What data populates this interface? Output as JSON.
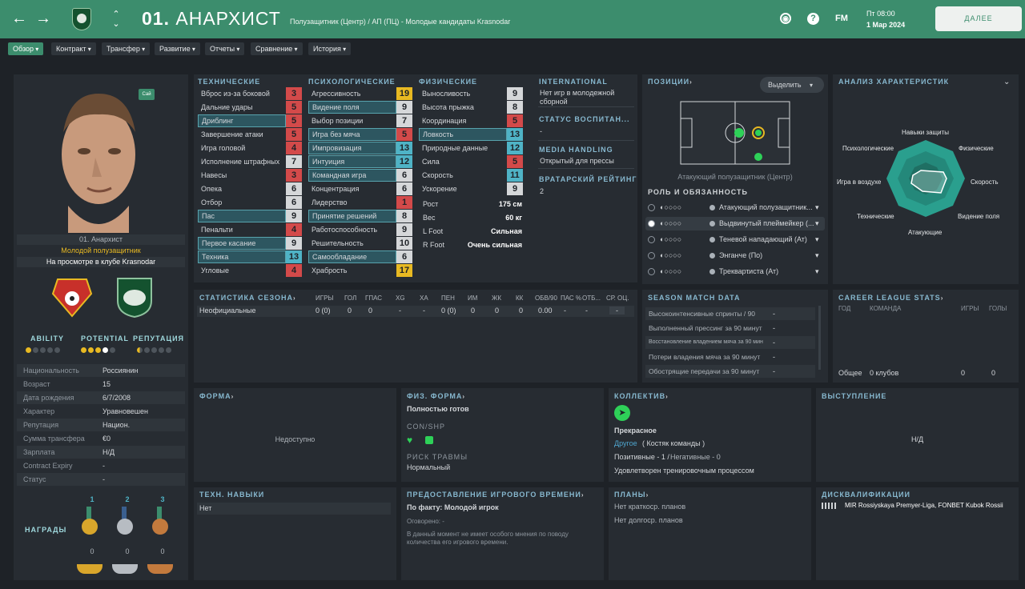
{
  "header": {
    "player_title": "01. Анархист",
    "title_number": "01.",
    "title_name": "АНАРХИСТ",
    "subtitle": "Полузащитник (Центр) / АП (ПЦ) - Молодые кандидаты Krasnodar",
    "fm_label": "FM",
    "day_time": "Пт 08:00",
    "date": "1 Мар 2024",
    "continue_label": "ДАЛЕЕ",
    "help_icon": "?"
  },
  "nav": [
    "Обзор",
    "Контракт",
    "Трансфер",
    "Развитие",
    "Отчеты",
    "Сравнение",
    "История"
  ],
  "profile": {
    "badge": "Сай",
    "name_line": "01. Анархист",
    "role_line": "Молодой полузащитник",
    "club_line": "На просмотре в клубе Krasnodar",
    "ability_label": "ABILITY",
    "potential_label": "POTENTIAL",
    "reputation_label": "РЕПУТАЦИЯ",
    "ability_stars": 1,
    "potential_stars": 4,
    "reputation_stars": 0.5,
    "details": [
      {
        "label": "Национальность",
        "value": "Россиянин"
      },
      {
        "label": "Возраст",
        "value": "15"
      },
      {
        "label": "Дата рождения",
        "value": "6/7/2008"
      },
      {
        "label": "Характер",
        "value": "Уравновешен"
      },
      {
        "label": "Репутация",
        "value": "Национ."
      },
      {
        "label": "Сумма трансфера",
        "value": "€0"
      },
      {
        "label": "Зарплата",
        "value": "Н/Д"
      },
      {
        "label": "Contract Expiry",
        "value": "-"
      },
      {
        "label": "Статус",
        "value": "-"
      }
    ],
    "awards_label": "НАГРАДЫ",
    "medals": [
      {
        "place": "1",
        "count": "0",
        "color": "#d9a62b"
      },
      {
        "place": "2",
        "count": "0",
        "color": "#b7bcc2"
      },
      {
        "place": "3",
        "count": "0",
        "color": "#c37a3d"
      }
    ]
  },
  "attributes": {
    "technical_header": "ТЕХНИЧЕСКИЕ",
    "mental_header": "ПСИХОЛОГИЧЕСКИЕ",
    "physical_header": "ФИЗИЧЕСКИЕ",
    "technical": [
      {
        "name": "Вброс из-за боковой",
        "value": "3",
        "color": "#d34a4a",
        "hl": false
      },
      {
        "name": "Дальние удары",
        "value": "5",
        "color": "#d34a4a",
        "hl": false
      },
      {
        "name": "Дриблинг",
        "value": "5",
        "color": "#d34a4a",
        "hl": true
      },
      {
        "name": "Завершение атаки",
        "value": "5",
        "color": "#d34a4a",
        "hl": false
      },
      {
        "name": "Игра головой",
        "value": "4",
        "color": "#d34a4a",
        "hl": false
      },
      {
        "name": "Исполнение штрафных",
        "value": "7",
        "color": "#d5d7d9",
        "hl": false
      },
      {
        "name": "Навесы",
        "value": "3",
        "color": "#d34a4a",
        "hl": false
      },
      {
        "name": "Опека",
        "value": "6",
        "color": "#d5d7d9",
        "hl": false
      },
      {
        "name": "Отбор",
        "value": "6",
        "color": "#d5d7d9",
        "hl": false
      },
      {
        "name": "Пас",
        "value": "9",
        "color": "#d5d7d9",
        "hl": true
      },
      {
        "name": "Пенальти",
        "value": "4",
        "color": "#d34a4a",
        "hl": false
      },
      {
        "name": "Первое касание",
        "value": "9",
        "color": "#d5d7d9",
        "hl": true
      },
      {
        "name": "Техника",
        "value": "13",
        "color": "#4fb3c6",
        "hl": true
      },
      {
        "name": "Угловые",
        "value": "4",
        "color": "#d34a4a",
        "hl": false
      }
    ],
    "mental": [
      {
        "name": "Агрессивность",
        "value": "19",
        "color": "#e8b922",
        "hl": false
      },
      {
        "name": "Видение поля",
        "value": "9",
        "color": "#d5d7d9",
        "hl": true
      },
      {
        "name": "Выбор позиции",
        "value": "7",
        "color": "#d5d7d9",
        "hl": false
      },
      {
        "name": "Игра без мяча",
        "value": "5",
        "color": "#d34a4a",
        "hl": true
      },
      {
        "name": "Импровизация",
        "value": "13",
        "color": "#4fb3c6",
        "hl": true
      },
      {
        "name": "Интуиция",
        "value": "12",
        "color": "#4fb3c6",
        "hl": true
      },
      {
        "name": "Командная игра",
        "value": "6",
        "color": "#d5d7d9",
        "hl": true
      },
      {
        "name": "Концентрация",
        "value": "6",
        "color": "#d5d7d9",
        "hl": false
      },
      {
        "name": "Лидерство",
        "value": "1",
        "color": "#d34a4a",
        "hl": false
      },
      {
        "name": "Принятие решений",
        "value": "8",
        "color": "#d5d7d9",
        "hl": true
      },
      {
        "name": "Работоспособность",
        "value": "9",
        "color": "#d5d7d9",
        "hl": false
      },
      {
        "name": "Решительность",
        "value": "10",
        "color": "#d5d7d9",
        "hl": false
      },
      {
        "name": "Самообладание",
        "value": "6",
        "color": "#d5d7d9",
        "hl": true
      },
      {
        "name": "Храбрость",
        "value": "17",
        "color": "#e8b922",
        "hl": false
      }
    ],
    "physical": [
      {
        "name": "Выносливость",
        "value": "9",
        "color": "#d5d7d9",
        "hl": false
      },
      {
        "name": "Высота прыжка",
        "value": "8",
        "color": "#d5d7d9",
        "hl": false
      },
      {
        "name": "Координация",
        "value": "5",
        "color": "#d34a4a",
        "hl": false
      },
      {
        "name": "Ловкость",
        "value": "13",
        "color": "#4fb3c6",
        "hl": true
      },
      {
        "name": "Природные данные",
        "value": "12",
        "color": "#4fb3c6",
        "hl": false
      },
      {
        "name": "Сила",
        "value": "5",
        "color": "#d34a4a",
        "hl": false
      },
      {
        "name": "Скорость",
        "value": "11",
        "color": "#4fb3c6",
        "hl": false
      },
      {
        "name": "Ускорение",
        "value": "9",
        "color": "#d5d7d9",
        "hl": false
      }
    ],
    "physical_info": [
      {
        "label": "Рост",
        "value": "175 см"
      },
      {
        "label": "Вес",
        "value": "60 кг"
      },
      {
        "label": "L Foot",
        "value": "Сильная"
      },
      {
        "label": "R Foot",
        "value": "Очень сильная"
      }
    ]
  },
  "intl": {
    "header": "INTERNATIONAL",
    "text": "Нет игр в молодежной сборной",
    "status_header": "СТАТУС ВОСПИТАН...",
    "status_value": "-",
    "media_header": "MEDIA HANDLING",
    "media_value": "Открытый для прессы",
    "gk_header": "ВРАТАРСКИЙ РЕЙТИНГ",
    "gk_value": "2"
  },
  "positions": {
    "header": "ПОЗИЦИИ",
    "select_label": "Выделить",
    "caption": "Атакующий полузащитник (Центр)",
    "roles_header": "РОЛЬ И ОБЯЗАННОСТЬ",
    "roles": [
      "Атакующий полузащитник...",
      "Выдвинутый плеймейкер (...",
      "Теневой нападающий (Ат)",
      "Энганче (По)",
      "Трекварτиста (Ат)"
    ]
  },
  "analysis": {
    "header": "АНАЛИЗ ХАРАКТЕРИСТИК",
    "labels": [
      "Навыки защиты",
      "Физические",
      "Скорость",
      "Видение поля",
      "Атакующие",
      "Технические",
      "Игра в воздухе",
      "Психологические"
    ]
  },
  "season": {
    "header": "СТАТИСТИКА СЕЗОНА",
    "columns": [
      "ИГРЫ",
      "ГОЛ",
      "ГПАС",
      "XG",
      "XA",
      "ПЕН",
      "ИМ",
      "ЖК",
      "КК",
      "ОБВ/90",
      "ПАС %",
      "ОТБ...",
      "СР. ОЦ."
    ],
    "row_label": "Неофициальные",
    "row_values": [
      "0 (0)",
      "0",
      "0",
      "-",
      "-",
      "0 (0)",
      "0",
      "0",
      "0",
      "0.00",
      "-",
      "-",
      "-"
    ]
  },
  "match_data": {
    "header": "SEASON MATCH DATA",
    "items": [
      {
        "label": "Высокоинтенсивные спринты / 90",
        "value": "-"
      },
      {
        "label": "Выполненный прессинг за 90 минут",
        "value": "-"
      },
      {
        "label": "Восстановление владением мяча за 90 мин",
        "value": "-"
      },
      {
        "label": "Потери владения мяча за 90 минут",
        "value": "-"
      },
      {
        "label": "Обострящие передачи за 90 минут",
        "value": "-"
      }
    ]
  },
  "career": {
    "header": "CAREER LEAGUE STATS",
    "col_year": "ГОД",
    "col_team": "КОМАНДА",
    "col_apps": "ИГРЫ",
    "col_goals": "ГОЛЫ",
    "total_label": "Общее",
    "total_team": "0 клубов",
    "total_apps": "0",
    "total_goals": "0"
  },
  "form": {
    "header": "ФОРМА",
    "value": "Недоступно"
  },
  "fitness": {
    "header": "ФИЗ. ФОРМА",
    "status": "Полностью готов",
    "con_label": "CON/SHP",
    "risk_label": "РИСК ТРАВМЫ",
    "risk_value": "Нормальный"
  },
  "team": {
    "header": "КОЛЛЕКТИВ",
    "mood": "Прекрасное",
    "group": "Другое",
    "group_note": "( Костяк команды )",
    "positive": "Позитивные - 1 /",
    "negative": "Негативные - 0",
    "training": "Удовлетворен тренировочным процессом"
  },
  "performance": {
    "header": "ВЫСТУПЛЕНИЕ",
    "value": "Н/Д"
  },
  "tech_skills": {
    "header": "ТЕХН. НАВЫКИ",
    "value": "Нет"
  },
  "playtime": {
    "header": "ПРЕДОСТАВЛЕНИЕ ИГРОВОГО ВРЕМЕНИ",
    "fact_label": "По факту:",
    "fact_value": "Молодой игрок",
    "agreed": "Оговорено: -",
    "note": "В данный момент не имеет особого мнения по поводу количества его игрового времени."
  },
  "plans": {
    "header": "ПЛАНЫ",
    "short": "Нет краткоср. планов",
    "long": "Нет долгоср. планов"
  },
  "bans": {
    "header": "ДИСКВАЛИФИКАЦИИ",
    "text": "MIR Rossiyskaya Premyer-Liga, FONBET Kubok Rossii"
  },
  "colors": {
    "accent": "#3c8d6d",
    "panel": "#272c32",
    "bg": "#1e2227"
  }
}
